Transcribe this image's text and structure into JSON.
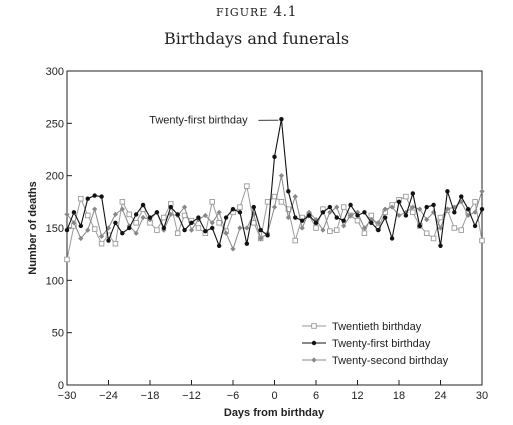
{
  "figure": {
    "label_prefix": "FIGURE",
    "label_number": "4.1"
  },
  "chart_data": {
    "type": "line",
    "title": "Birthdays and funerals",
    "xlabel": "Days from birthday",
    "ylabel": "Number of deaths",
    "xlim": [
      -30,
      30
    ],
    "ylim": [
      0,
      300
    ],
    "xticks": [
      -30,
      -24,
      -18,
      -12,
      -6,
      0,
      6,
      12,
      18,
      24,
      30
    ],
    "xtick_labels": [
      "−30",
      "−24",
      "−18",
      "−12",
      "−6",
      "0",
      "6",
      "12",
      "18",
      "24",
      "30"
    ],
    "yticks": [
      0,
      50,
      100,
      150,
      200,
      250,
      300
    ],
    "grid": false,
    "legend_position": "bottom-right",
    "annotation": {
      "text": "Twenty-first birthday",
      "x": 1,
      "y": 254
    },
    "series": [
      {
        "name": "Twentieth birthday",
        "marker": "square-open",
        "color": "#9a9a9a",
        "x": [
          -30,
          -29,
          -28,
          -27,
          -26,
          -25,
          -24,
          -23,
          -22,
          -21,
          -20,
          -19,
          -18,
          -17,
          -16,
          -15,
          -14,
          -13,
          -12,
          -11,
          -10,
          -9,
          -8,
          -7,
          -6,
          -5,
          -4,
          -3,
          -2,
          -1,
          0,
          1,
          2,
          3,
          4,
          5,
          6,
          7,
          8,
          9,
          10,
          11,
          12,
          13,
          14,
          15,
          16,
          17,
          18,
          19,
          20,
          21,
          22,
          23,
          24,
          25,
          26,
          27,
          28,
          29,
          30
        ],
        "values": [
          120,
          152,
          178,
          162,
          149,
          135,
          143,
          135,
          175,
          163,
          155,
          168,
          155,
          148,
          160,
          173,
          145,
          162,
          157,
          150,
          145,
          175,
          155,
          147,
          165,
          170,
          190,
          155,
          140,
          175,
          180,
          175,
          168,
          138,
          160,
          162,
          150,
          168,
          147,
          148,
          170,
          162,
          157,
          145,
          162,
          150,
          165,
          172,
          177,
          180,
          165,
          152,
          145,
          140,
          160,
          167,
          150,
          148,
          165,
          175,
          138
        ]
      },
      {
        "name": "Twenty-first birthday",
        "marker": "dot-filled",
        "color": "#111111",
        "x": [
          -30,
          -29,
          -28,
          -27,
          -26,
          -25,
          -24,
          -23,
          -22,
          -21,
          -20,
          -19,
          -18,
          -17,
          -16,
          -15,
          -14,
          -13,
          -12,
          -11,
          -10,
          -9,
          -8,
          -7,
          -6,
          -5,
          -4,
          -3,
          -2,
          -1,
          0,
          1,
          2,
          3,
          4,
          5,
          6,
          7,
          8,
          9,
          10,
          11,
          12,
          13,
          14,
          15,
          16,
          17,
          18,
          19,
          20,
          21,
          22,
          23,
          24,
          25,
          26,
          27,
          28,
          29,
          30
        ],
        "values": [
          148,
          165,
          152,
          178,
          181,
          180,
          138,
          155,
          145,
          150,
          163,
          172,
          160,
          165,
          150,
          170,
          163,
          148,
          155,
          160,
          147,
          150,
          133,
          160,
          168,
          165,
          135,
          170,
          148,
          143,
          218,
          254,
          185,
          160,
          157,
          162,
          155,
          165,
          170,
          160,
          157,
          172,
          162,
          165,
          155,
          148,
          160,
          140,
          175,
          162,
          183,
          152,
          170,
          172,
          133,
          185,
          165,
          180,
          168,
          152,
          168
        ]
      },
      {
        "name": "Twenty-second birthday",
        "marker": "diamond-filled",
        "color": "#888888",
        "x": [
          -30,
          -29,
          -28,
          -27,
          -26,
          -25,
          -24,
          -23,
          -22,
          -21,
          -20,
          -19,
          -18,
          -17,
          -16,
          -15,
          -14,
          -13,
          -12,
          -11,
          -10,
          -9,
          -8,
          -7,
          -6,
          -5,
          -4,
          -3,
          -2,
          -1,
          0,
          1,
          2,
          3,
          4,
          5,
          6,
          7,
          8,
          9,
          10,
          11,
          12,
          13,
          14,
          15,
          16,
          17,
          18,
          19,
          20,
          21,
          22,
          23,
          24,
          25,
          26,
          27,
          28,
          29,
          30
        ],
        "values": [
          163,
          155,
          140,
          148,
          168,
          142,
          150,
          163,
          168,
          152,
          145,
          160,
          158,
          165,
          148,
          163,
          162,
          170,
          148,
          158,
          162,
          155,
          165,
          145,
          130,
          150,
          150,
          163,
          140,
          145,
          170,
          200,
          160,
          180,
          150,
          165,
          158,
          148,
          165,
          170,
          152,
          162,
          165,
          150,
          158,
          155,
          168,
          170,
          162,
          165,
          170,
          168,
          158,
          165,
          150,
          168,
          170,
          175,
          162,
          165,
          185
        ]
      }
    ]
  }
}
